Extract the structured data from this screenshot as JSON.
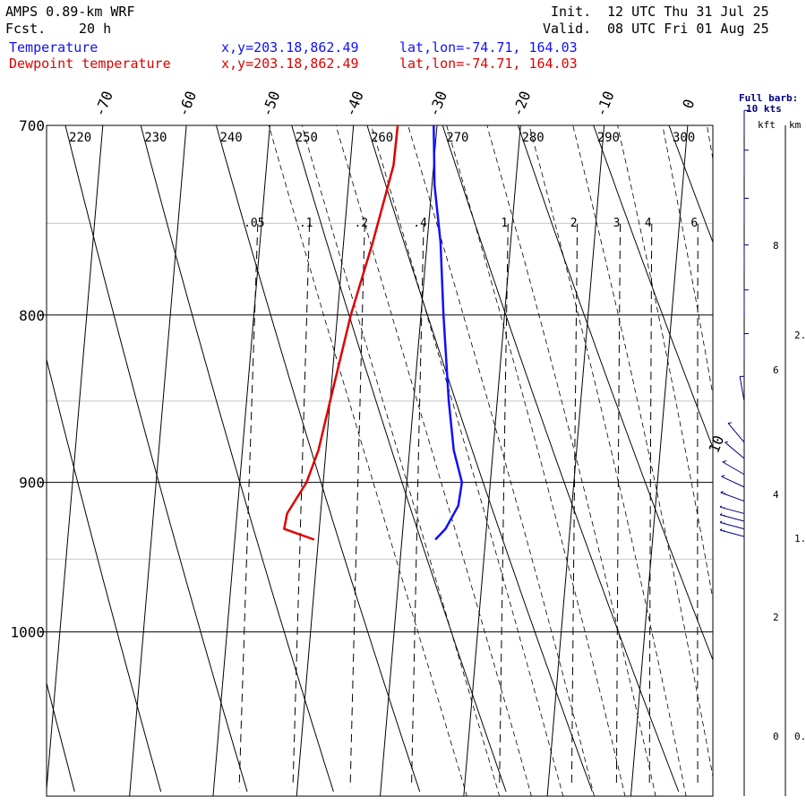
{
  "header": {
    "model": "AMPS 0.89-km WRF",
    "fcst_label": "Fcst.",
    "fcst_value": "20 h",
    "init_label": "Init.",
    "init_value": "12 UTC Thu 31 Jul 25",
    "valid_label": "Valid.",
    "valid_value": "08 UTC Fri 01 Aug 25"
  },
  "legend": [
    {
      "name": "Temperature",
      "xy": "x,y=203.18,862.49",
      "latlon": "lat,lon=-74.71, 164.03",
      "color": "#1010ff"
    },
    {
      "name": "Dewpoint temperature",
      "xy": "x,y=203.18,862.49",
      "latlon": "lat,lon=-74.71, 164.03",
      "color": "#e00000"
    }
  ],
  "barb_scale": {
    "line1": "Full barb:",
    "line2": "10 kts"
  },
  "height_axis": {
    "kft_label": "kft",
    "km_label": "km",
    "kft_ticks": [
      "8",
      "6",
      "4",
      "2",
      "0"
    ],
    "km_ticks": [
      "2.",
      "1.",
      "0."
    ]
  },
  "chart_data": {
    "type": "line",
    "title": "AMPS 0.89-km WRF",
    "y_axis": {
      "quantity": "pressure (hPa)",
      "log_scale": true,
      "inverted": true,
      "range": [
        1040,
        700
      ],
      "ticks": [
        700,
        800,
        900,
        1000
      ]
    },
    "x_axis": {
      "quantity": "temperature (°C), skewed",
      "top_tick_labels": [
        "-70",
        "-60",
        "-50",
        "-40",
        "-30",
        "-20",
        "-10",
        "0"
      ],
      "right_tick_labels": [
        "10"
      ]
    },
    "isotherm_ticks_c": [
      -70,
      -60,
      -50,
      -40,
      -30,
      -20,
      -10,
      0,
      10
    ],
    "dry_adiabat_labels_k": [
      "220",
      "230",
      "240",
      "250",
      "260",
      "270",
      "280",
      "290",
      "300"
    ],
    "mixing_ratio_labels_gkg": [
      ".05",
      ".1",
      ".2",
      ".4",
      "1",
      "2",
      "3",
      "4",
      "6"
    ],
    "mixing_ratio_values_gkg": [
      0.05,
      0.1,
      0.2,
      0.4,
      1,
      2,
      3,
      4,
      6
    ],
    "moist_adiabat_theta_w_k": [
      246,
      250,
      254,
      258,
      262,
      266,
      270,
      274,
      278,
      282,
      286,
      290,
      294,
      298
    ],
    "grid": {
      "major_pressure": [
        800,
        900,
        1000
      ],
      "minor_pressure": [
        750,
        850,
        950
      ]
    },
    "series": [
      {
        "name": "Temperature",
        "color": "#1010ff",
        "points": [
          {
            "p": 937,
            "t": -26.0
          },
          {
            "p": 930,
            "t": -24.9
          },
          {
            "p": 915,
            "t": -23.6
          },
          {
            "p": 900,
            "t": -23.4
          },
          {
            "p": 880,
            "t": -24.7
          },
          {
            "p": 850,
            "t": -25.8
          },
          {
            "p": 800,
            "t": -27.3
          },
          {
            "p": 760,
            "t": -28.4
          },
          {
            "p": 730,
            "t": -29.7
          },
          {
            "p": 700,
            "t": -30.4
          }
        ]
      },
      {
        "name": "Dewpoint temperature",
        "color": "#e00000",
        "points": [
          {
            "p": 937,
            "t": -40.5
          },
          {
            "p": 930,
            "t": -44.2
          },
          {
            "p": 920,
            "t": -44.0
          },
          {
            "p": 900,
            "t": -42.0
          },
          {
            "p": 880,
            "t": -40.9
          },
          {
            "p": 850,
            "t": -40.0
          },
          {
            "p": 800,
            "t": -38.4
          },
          {
            "p": 760,
            "t": -36.5
          },
          {
            "p": 720,
            "t": -34.8
          },
          {
            "p": 700,
            "t": -34.7
          }
        ]
      }
    ],
    "wind_barbs": [
      {
        "p": 935,
        "speed_kt": 15,
        "dir_deg": 255
      },
      {
        "p": 930,
        "speed_kt": 15,
        "dir_deg": 255
      },
      {
        "p": 925,
        "speed_kt": 15,
        "dir_deg": 255
      },
      {
        "p": 920,
        "speed_kt": 15,
        "dir_deg": 255
      },
      {
        "p": 912,
        "speed_kt": 15,
        "dir_deg": 250
      },
      {
        "p": 903,
        "speed_kt": 10,
        "dir_deg": 245
      },
      {
        "p": 895,
        "speed_kt": 10,
        "dir_deg": 240
      },
      {
        "p": 885,
        "speed_kt": 5,
        "dir_deg": 230
      },
      {
        "p": 875,
        "speed_kt": 5,
        "dir_deg": 220
      },
      {
        "p": 850,
        "speed_kt": 5,
        "dir_deg": 190
      },
      {
        "p": 825,
        "speed_kt": 5,
        "dir_deg": 180
      },
      {
        "p": 800,
        "speed_kt": 5,
        "dir_deg": 180
      },
      {
        "p": 775,
        "speed_kt": 5,
        "dir_deg": 180
      },
      {
        "p": 750,
        "speed_kt": 5,
        "dir_deg": 180
      },
      {
        "p": 725,
        "speed_kt": 5,
        "dir_deg": 180
      },
      {
        "p": 705,
        "speed_kt": 5,
        "dir_deg": 180
      }
    ]
  }
}
